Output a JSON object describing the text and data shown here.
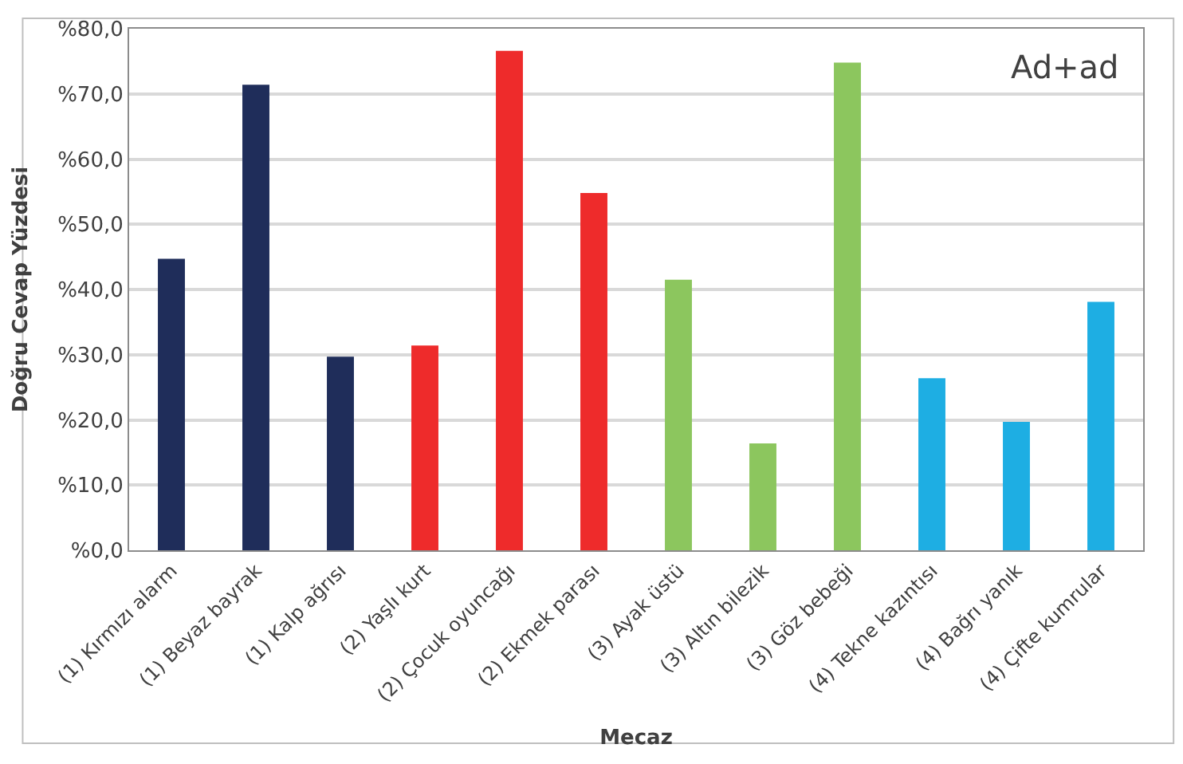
{
  "chart_data": {
    "type": "bar",
    "xlabel": "Mecaz",
    "ylabel": "Doğru Cevap Yüzdesi",
    "annotations": [
      "Ad+ad"
    ],
    "categories": [
      "(1) Kırmızı alarm",
      "(1) Beyaz bayrak",
      "(1) Kalp ağrısı",
      "(2) Yaşlı kurt",
      "(2) Çocuk oyuncağı",
      "(2) Ekmek parası",
      "(3) Ayak üstü",
      "(3) Altın bilezik",
      "(3) Göz bebeği",
      "(4) Tekne kazıntısı",
      "(4) Bağrı yanık",
      "(4) Çifte kumrular"
    ],
    "values": [
      44.7,
      71.4,
      29.7,
      31.4,
      76.6,
      54.8,
      41.5,
      16.4,
      74.8,
      26.4,
      19.7,
      38.1
    ],
    "colors": [
      "#1f2d5a",
      "#1f2d5a",
      "#1f2d5a",
      "#ee2b2b",
      "#ee2b2b",
      "#ee2b2b",
      "#8cc65e",
      "#8cc65e",
      "#8cc65e",
      "#1eaee3",
      "#1eaee3",
      "#1eaee3"
    ],
    "ylim": [
      0,
      80
    ],
    "yticks": [
      {
        "value": 0,
        "label": "%0,0"
      },
      {
        "value": 10,
        "label": "%10,0"
      },
      {
        "value": 20,
        "label": "%20,0"
      },
      {
        "value": 30,
        "label": "%30,0"
      },
      {
        "value": 40,
        "label": "%40,0"
      },
      {
        "value": 50,
        "label": "%50,0"
      },
      {
        "value": 60,
        "label": "%60,0"
      },
      {
        "value": 70,
        "label": "%70,0"
      },
      {
        "value": 80,
        "label": "%80,0"
      }
    ],
    "grid": "y"
  }
}
